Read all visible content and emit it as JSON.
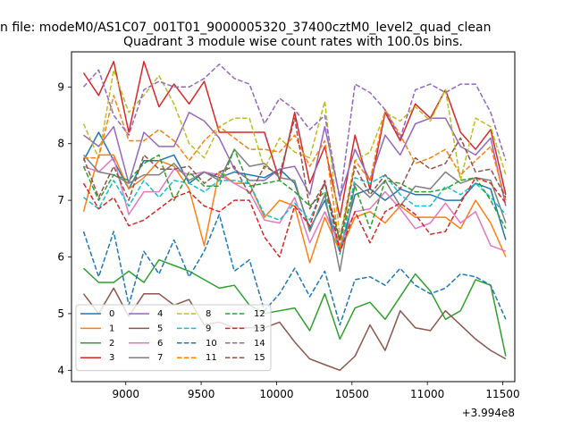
{
  "chart_data": {
    "type": "line",
    "suptitle": "n file: modeM0/AS1C07_001T01_9000005320_37400cztM0_level2_quad_clean",
    "title": "Quadrant 3 module wise count rates with 100.0s bins.",
    "xlabel": "",
    "ylabel": "",
    "x_offset_label": "+3.994e8",
    "xlim": [
      8640,
      11580
    ],
    "ylim": [
      3.8,
      9.62
    ],
    "x_ticks": [
      9000,
      9500,
      10000,
      10500,
      11000,
      11500
    ],
    "y_ticks": [
      4,
      5,
      6,
      7,
      8,
      9
    ],
    "x": [
      8720,
      8820,
      8920,
      9020,
      9120,
      9220,
      9320,
      9420,
      9520,
      9620,
      9720,
      9820,
      9920,
      10020,
      10120,
      10220,
      10320,
      10420,
      10520,
      10620,
      10720,
      10820,
      10920,
      11020,
      11120,
      11220,
      11320,
      11420,
      11520
    ],
    "legend": {
      "location": "lower-left",
      "columns": 4
    },
    "series": [
      {
        "name": "0",
        "color": "#1f77b4",
        "dash": "solid",
        "values": [
          7.7,
          8.2,
          7.7,
          7.2,
          7.7,
          7.7,
          7.8,
          7.3,
          7.5,
          7.4,
          7.5,
          7.45,
          7.4,
          7.55,
          7.3,
          6.5,
          7.0,
          6.1,
          7.1,
          7.2,
          7.0,
          7.2,
          7.1,
          7.1,
          7.0,
          7.0,
          7.3,
          7.2,
          6.3
        ]
      },
      {
        "name": "1",
        "color": "#ff7f0e",
        "dash": "solid",
        "values": [
          6.8,
          7.8,
          7.8,
          7.2,
          7.4,
          7.7,
          7.6,
          7.2,
          6.2,
          7.5,
          7.3,
          7.3,
          6.7,
          7.0,
          6.9,
          5.9,
          6.7,
          6.1,
          6.7,
          6.8,
          6.6,
          6.9,
          6.7,
          6.7,
          6.7,
          6.5,
          7.0,
          6.6,
          6.0
        ]
      },
      {
        "name": "2",
        "color": "#2ca02c",
        "dash": "solid",
        "values": [
          5.8,
          5.55,
          5.55,
          5.75,
          5.55,
          5.95,
          5.85,
          5.75,
          5.6,
          5.45,
          5.5,
          5.15,
          5.0,
          5.05,
          5.1,
          4.7,
          5.35,
          4.55,
          5.1,
          5.2,
          4.9,
          5.3,
          5.7,
          5.4,
          4.9,
          5.05,
          5.6,
          5.5,
          4.25
        ]
      },
      {
        "name": "3",
        "color": "#d62728",
        "dash": "solid",
        "values": [
          9.25,
          8.85,
          9.45,
          8.2,
          9.45,
          8.65,
          9.05,
          8.7,
          9.1,
          8.2,
          8.2,
          8.2,
          8.2,
          7.35,
          8.55,
          7.3,
          7.95,
          6.7,
          8.15,
          7.2,
          8.55,
          8.05,
          8.7,
          8.45,
          8.95,
          8.2,
          7.9,
          8.25,
          7.1
        ]
      },
      {
        "name": "4",
        "color": "#9467bd",
        "dash": "solid",
        "values": [
          8.15,
          7.95,
          8.3,
          7.3,
          8.2,
          7.95,
          7.95,
          8.55,
          8.4,
          8.1,
          7.55,
          7.35,
          7.35,
          7.55,
          7.6,
          7.1,
          8.3,
          7.05,
          7.9,
          7.35,
          8.15,
          7.8,
          8.35,
          8.45,
          8.45,
          7.95,
          7.8,
          8.1,
          6.9
        ]
      },
      {
        "name": "5",
        "color": "#8c564b",
        "dash": "solid",
        "values": [
          5.35,
          5.0,
          5.45,
          4.95,
          5.35,
          5.35,
          5.15,
          5.25,
          4.8,
          4.85,
          4.75,
          4.75,
          4.75,
          4.85,
          4.5,
          4.2,
          4.1,
          4.0,
          4.25,
          4.8,
          4.35,
          5.05,
          4.75,
          4.7,
          5.05,
          4.8,
          4.55,
          4.35,
          4.2
        ]
      },
      {
        "name": "6",
        "color": "#e377c2",
        "dash": "solid",
        "values": [
          7.6,
          7.5,
          7.75,
          6.75,
          7.15,
          7.15,
          7.55,
          7.45,
          7.5,
          7.45,
          7.3,
          7.15,
          6.65,
          6.6,
          7.05,
          6.25,
          6.8,
          6.2,
          6.8,
          6.85,
          7.15,
          6.85,
          6.5,
          6.6,
          6.95,
          6.6,
          6.8,
          6.2,
          6.1
        ]
      },
      {
        "name": "7",
        "color": "#7f7f7f",
        "dash": "solid",
        "values": [
          7.8,
          7.5,
          7.45,
          7.3,
          7.45,
          7.45,
          7.65,
          7.35,
          7.5,
          7.35,
          7.9,
          7.6,
          7.65,
          7.4,
          7.35,
          6.45,
          7.1,
          5.75,
          7.3,
          7.05,
          7.35,
          6.9,
          7.25,
          7.2,
          7.5,
          7.3,
          7.4,
          7.35,
          6.6
        ]
      },
      {
        "name": "8",
        "color": "#bcbd22",
        "dash": "dashed",
        "values": [
          8.35,
          7.75,
          9.3,
          8.55,
          8.85,
          9.2,
          8.7,
          8.0,
          7.75,
          8.3,
          8.45,
          8.45,
          7.55,
          8.1,
          7.85,
          7.75,
          8.75,
          6.35,
          7.7,
          7.85,
          8.55,
          8.4,
          8.65,
          8.4,
          8.95,
          7.35,
          8.45,
          8.3,
          7.45
        ]
      },
      {
        "name": "9",
        "color": "#17becf",
        "dash": "dashed",
        "values": [
          7.05,
          6.85,
          7.35,
          6.9,
          7.35,
          7.05,
          7.35,
          7.3,
          7.15,
          7.35,
          7.35,
          7.3,
          6.75,
          6.65,
          6.95,
          6.65,
          7.3,
          6.05,
          7.4,
          7.3,
          7.45,
          7.1,
          6.9,
          6.9,
          7.25,
          7.1,
          7.3,
          7.05,
          6.75
        ]
      },
      {
        "name": "10",
        "color": "#1f77b4",
        "dash": "dashed",
        "values": [
          6.45,
          5.65,
          6.45,
          5.15,
          6.1,
          5.7,
          6.3,
          5.65,
          6.1,
          6.75,
          5.75,
          5.95,
          5.05,
          5.35,
          5.8,
          5.3,
          5.75,
          4.8,
          5.6,
          5.65,
          5.5,
          5.8,
          5.5,
          5.35,
          5.45,
          5.7,
          5.65,
          5.5,
          4.9
        ]
      },
      {
        "name": "11",
        "color": "#ff7f0e",
        "dash": "dashed",
        "values": [
          7.75,
          7.75,
          8.85,
          8.05,
          8.05,
          8.25,
          8.05,
          7.7,
          8.05,
          8.3,
          8.1,
          7.9,
          7.9,
          7.85,
          8.15,
          7.6,
          8.05,
          6.15,
          7.7,
          7.35,
          8.6,
          8.15,
          7.65,
          7.75,
          7.9,
          7.45,
          7.7,
          7.95,
          7.0
        ]
      },
      {
        "name": "12",
        "color": "#2ca02c",
        "dash": "dashed",
        "values": [
          7.6,
          7.0,
          7.45,
          7.35,
          7.65,
          7.8,
          7.0,
          7.5,
          7.25,
          7.25,
          7.9,
          7.25,
          7.3,
          7.35,
          7.15,
          6.9,
          7.15,
          6.3,
          7.25,
          6.5,
          7.35,
          7.3,
          7.15,
          7.15,
          7.2,
          7.35,
          7.4,
          7.0,
          6.5
        ]
      },
      {
        "name": "13",
        "color": "#d62728",
        "dash": "dashed",
        "values": [
          7.3,
          6.85,
          7.05,
          6.55,
          6.65,
          6.85,
          7.05,
          7.15,
          6.9,
          6.8,
          7.0,
          7.0,
          6.35,
          6.0,
          6.9,
          6.55,
          7.35,
          6.1,
          6.8,
          6.25,
          6.8,
          6.95,
          6.75,
          6.4,
          6.45,
          6.95,
          7.4,
          7.3,
          6.95
        ]
      },
      {
        "name": "14",
        "color": "#9467bd",
        "dash": "dashed",
        "values": [
          9.0,
          9.3,
          8.5,
          8.15,
          8.95,
          9.1,
          9.0,
          9.0,
          9.15,
          9.4,
          9.15,
          9.05,
          8.35,
          8.8,
          8.6,
          8.25,
          8.5,
          7.0,
          9.05,
          8.9,
          8.6,
          8.1,
          8.95,
          9.05,
          8.9,
          9.05,
          9.05,
          8.55,
          7.7
        ]
      },
      {
        "name": "15",
        "color": "#8c564b",
        "dash": "dashed",
        "values": [
          7.75,
          7.05,
          7.6,
          7.0,
          7.8,
          7.55,
          7.55,
          7.6,
          7.3,
          7.5,
          7.6,
          7.1,
          7.6,
          7.45,
          8.45,
          6.85,
          7.3,
          6.3,
          7.6,
          7.1,
          7.45,
          7.2,
          7.75,
          7.55,
          7.65,
          8.1,
          7.5,
          7.55,
          7.05
        ]
      }
    ]
  }
}
